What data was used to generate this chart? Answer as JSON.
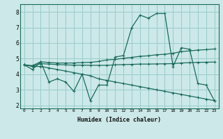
{
  "title": "",
  "xlabel": "Humidex (Indice chaleur)",
  "background_color": "#cce8e8",
  "grid_color": "#99cccc",
  "line_color": "#1a6b5a",
  "xlim": [
    -0.5,
    23.5
  ],
  "ylim": [
    1.8,
    8.5
  ],
  "xticks": [
    0,
    1,
    2,
    3,
    4,
    5,
    6,
    7,
    8,
    9,
    10,
    11,
    12,
    13,
    14,
    15,
    16,
    17,
    18,
    19,
    20,
    21,
    22,
    23
  ],
  "yticks": [
    2,
    3,
    4,
    5,
    6,
    7,
    8
  ],
  "series": {
    "line1": [
      4.6,
      4.3,
      4.8,
      3.5,
      3.7,
      3.5,
      2.9,
      4.0,
      2.3,
      3.3,
      3.3,
      5.1,
      5.2,
      7.0,
      7.8,
      7.6,
      7.9,
      7.9,
      4.5,
      5.7,
      5.6,
      3.4,
      3.3,
      2.3
    ],
    "line2": [
      4.6,
      4.55,
      4.8,
      4.75,
      4.72,
      4.72,
      4.72,
      4.75,
      4.76,
      4.82,
      4.92,
      4.95,
      5.02,
      5.08,
      5.15,
      5.18,
      5.25,
      5.28,
      5.35,
      5.45,
      5.5,
      5.55,
      5.58,
      5.62
    ],
    "line3": [
      4.6,
      4.52,
      4.68,
      4.65,
      4.62,
      4.6,
      4.58,
      4.58,
      4.57,
      4.57,
      4.57,
      4.6,
      4.62,
      4.63,
      4.65,
      4.65,
      4.66,
      4.67,
      4.68,
      4.72,
      4.74,
      4.76,
      4.77,
      4.78
    ],
    "line4": [
      4.6,
      4.5,
      4.5,
      4.4,
      4.3,
      4.2,
      4.1,
      4.0,
      3.9,
      3.7,
      3.6,
      3.5,
      3.4,
      3.3,
      3.2,
      3.1,
      3.0,
      2.9,
      2.8,
      2.7,
      2.6,
      2.5,
      2.4,
      2.3
    ]
  }
}
